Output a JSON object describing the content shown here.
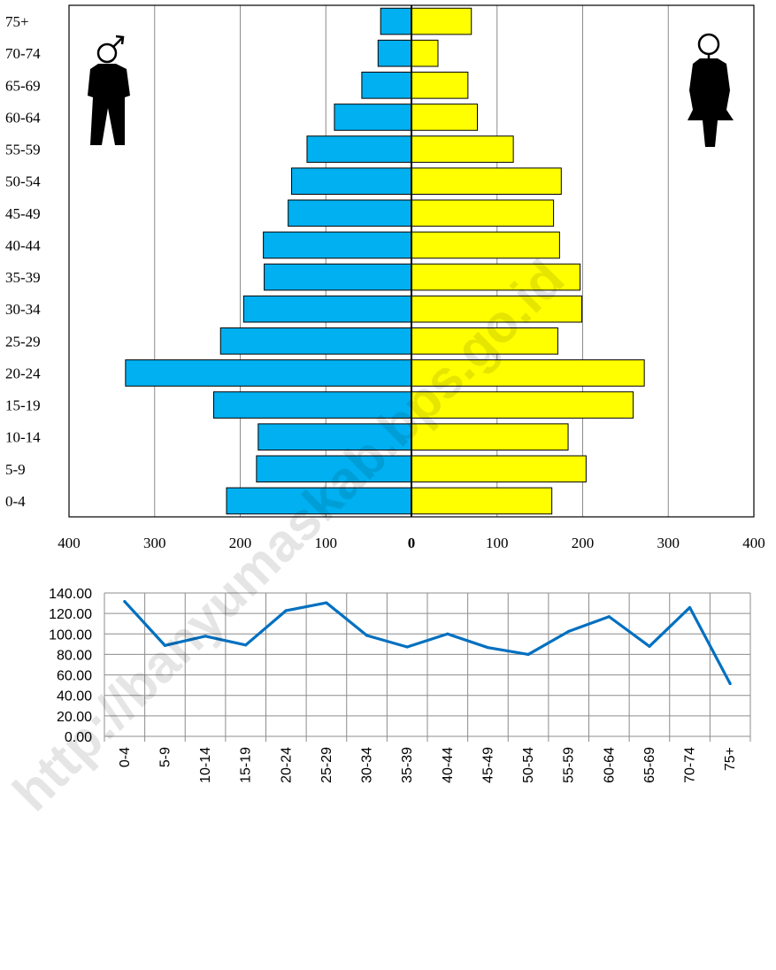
{
  "chart_data": [
    {
      "type": "bar",
      "orientation": "horizontal-pyramid",
      "categories": [
        "0-4",
        "5-9",
        "10-14",
        "15-19",
        "20-24",
        "25-29",
        "30-34",
        "35-39",
        "40-44",
        "45-49",
        "50-54",
        "55-59",
        "60-64",
        "65-69",
        "70-74",
        "75+"
      ],
      "series": [
        {
          "values": [
            216,
            181,
            179,
            231,
            334,
            223,
            196,
            172,
            173,
            144,
            140,
            122,
            90,
            58,
            39,
            36
          ],
          "color": "#00B0F0",
          "side": "left"
        },
        {
          "values": [
            164,
            204,
            183,
            259,
            272,
            171,
            199,
            197,
            173,
            166,
            175,
            119,
            77,
            66,
            31,
            70
          ],
          "color": "#FFFF00",
          "side": "right"
        }
      ],
      "x_ticks": [
        "400",
        "300",
        "200",
        "100",
        "0",
        "100",
        "200",
        "300",
        "400"
      ],
      "xlim": [
        -400,
        400
      ],
      "grid": "vertical",
      "icons": {
        "left": "male-symbol-icon",
        "right": "female-symbol-icon"
      }
    },
    {
      "type": "line",
      "categories": [
        "0-4",
        "5-9",
        "10-14",
        "15-19",
        "20-24",
        "25-29",
        "30-34",
        "35-39",
        "40-44",
        "45-49",
        "50-54",
        "55-59",
        "60-64",
        "65-69",
        "70-74",
        "75+"
      ],
      "series": [
        {
          "values": [
            131.7,
            88.7,
            97.8,
            89.2,
            122.8,
            130.4,
            98.5,
            87.3,
            100.0,
            86.7,
            80.0,
            102.5,
            116.9,
            87.9,
            125.8,
            51.4
          ],
          "color": "#0070C0"
        }
      ],
      "y_ticks": [
        "0.00",
        "20.00",
        "40.00",
        "60.00",
        "80.00",
        "100.00",
        "120.00",
        "140.00"
      ],
      "ylim": [
        0,
        140
      ],
      "grid": "both"
    }
  ],
  "watermark": "http://banyumaskab.bps.go.id"
}
